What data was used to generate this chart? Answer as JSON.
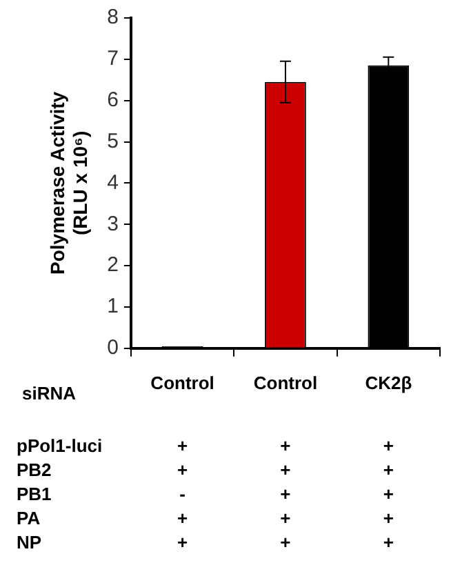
{
  "chart_data": {
    "type": "bar",
    "ylabel": "Polymerase Activity\n(RLU x 10⁶)",
    "categories": [
      "Control",
      "Control",
      "CK2β"
    ],
    "values": [
      0.05,
      6.45,
      6.85
    ],
    "colors": [
      "#000000",
      "#cc0000",
      "#000000"
    ],
    "errors": [
      null,
      0.5,
      0.2
    ],
    "ylim": [
      0,
      8
    ],
    "yticks": [
      0,
      1,
      2,
      3,
      4,
      5,
      6,
      7,
      8
    ],
    "grid": false,
    "legend": false,
    "annotations": [
      "siRNA",
      "pPol1-luci",
      "+",
      "+",
      "+",
      "PB2",
      "+",
      "+",
      "+",
      "PB1",
      "-",
      "+",
      "+",
      "PA",
      "+",
      "+",
      "+",
      "NP",
      "+",
      "+",
      "+"
    ]
  }
}
